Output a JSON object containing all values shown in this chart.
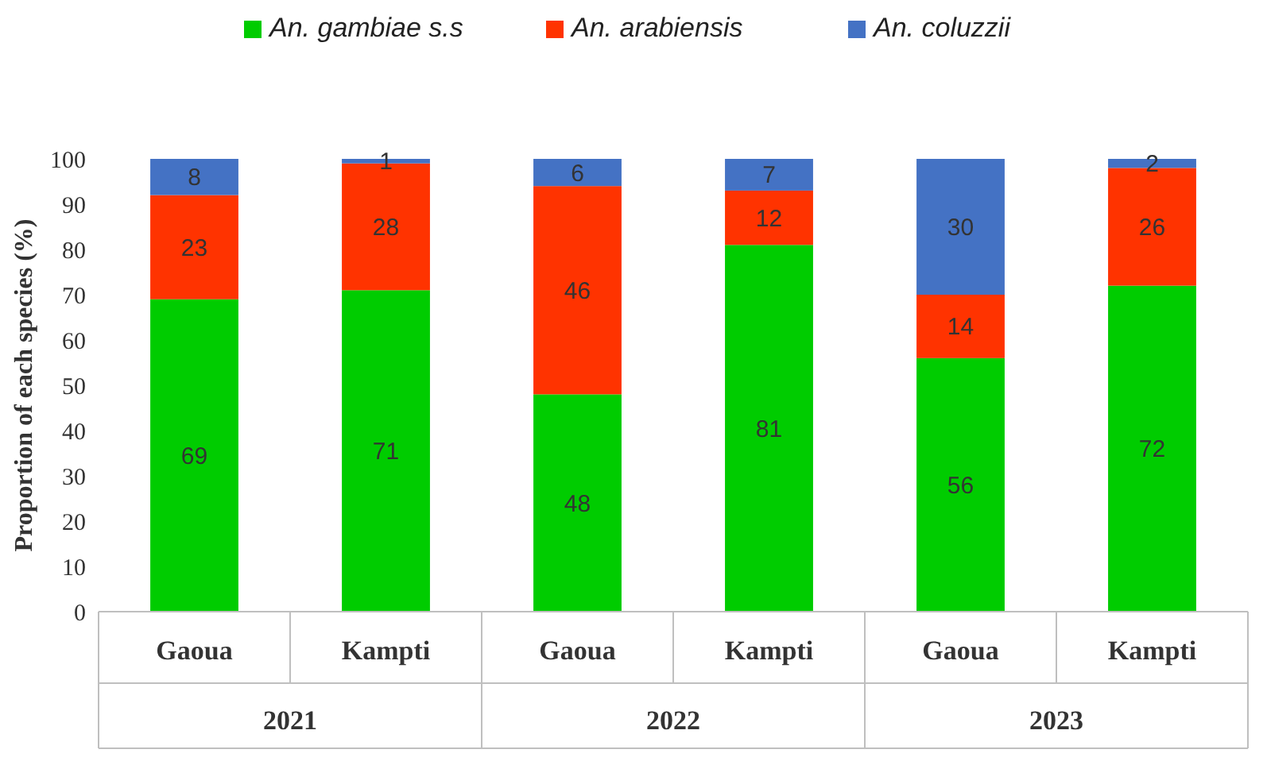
{
  "chart_data": {
    "type": "bar",
    "stacked": true,
    "ylabel": "Proportion of each species (%)",
    "categories": [
      "Gaoua",
      "Kampti",
      "Gaoua",
      "Kampti",
      "Gaoua",
      "Kampti"
    ],
    "series": [
      {
        "name": "An. gambiae s.s",
        "color": "#00cc00",
        "values": [
          69,
          71,
          48,
          81,
          56,
          72
        ]
      },
      {
        "name": "An. arabiensis",
        "color": "#ff3300",
        "values": [
          23,
          28,
          46,
          12,
          14,
          26
        ]
      },
      {
        "name": "An. coluzzii",
        "color": "#4472c4",
        "values": [
          8,
          1,
          6,
          7,
          30,
          2
        ]
      }
    ],
    "annotations": [
      "2021",
      "2022",
      "2023"
    ],
    "ylim": [
      0,
      100
    ],
    "yticks": [
      0,
      10,
      20,
      30,
      40,
      50,
      60,
      70,
      80,
      90,
      100
    ],
    "data_labels": true,
    "legend": "top",
    "grid": false
  }
}
